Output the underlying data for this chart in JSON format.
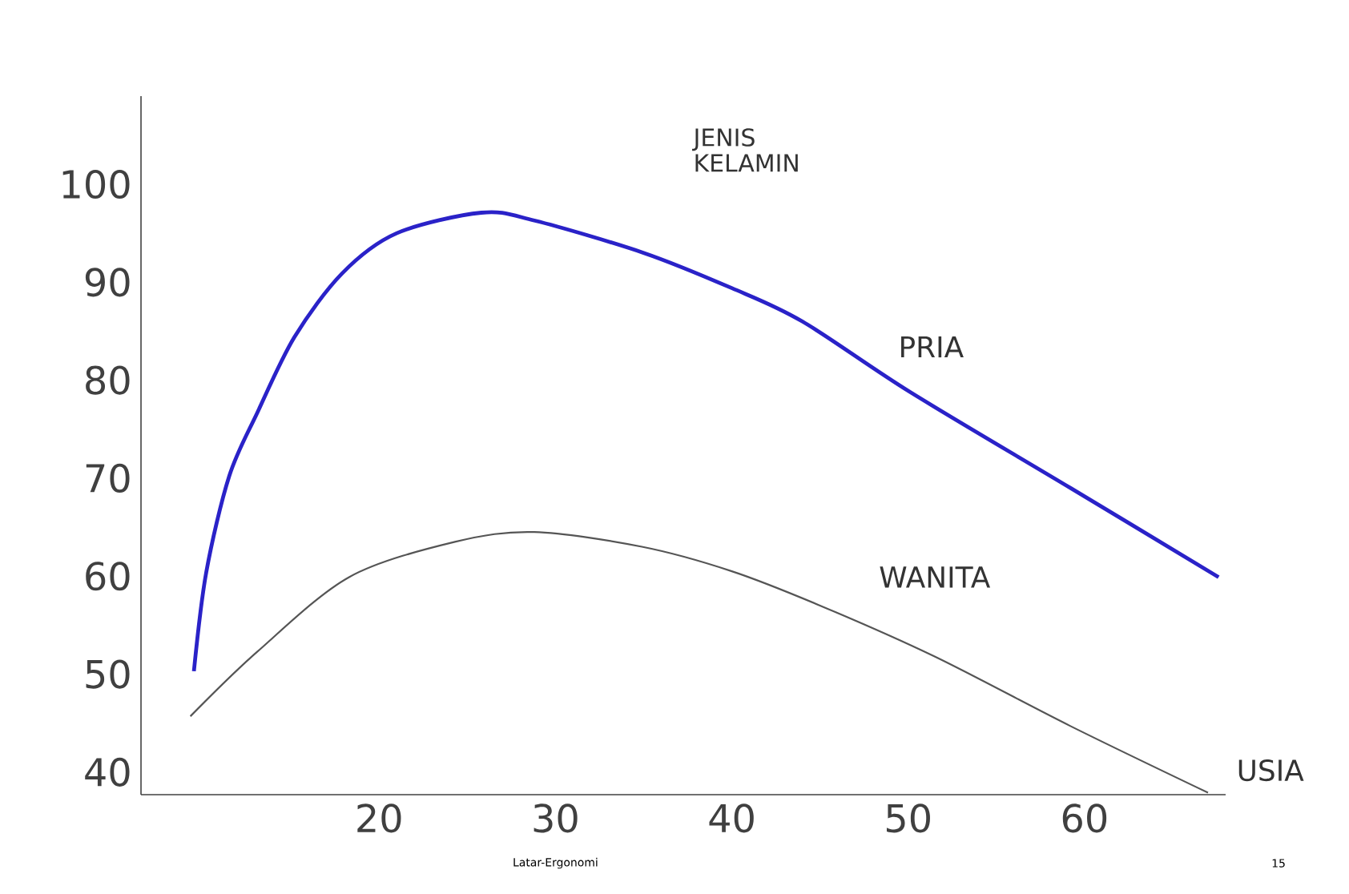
{
  "chart_data": {
    "type": "line",
    "legend_title": "JENIS KELAMIN",
    "xlabel": "USIA",
    "annotations": [
      "Latar-Ergonomi",
      "15"
    ],
    "xlim": [
      6.5,
      68
    ],
    "ylim": [
      37.7,
      109
    ],
    "xticks": [
      20,
      30,
      40,
      50,
      60
    ],
    "yticks": [
      40,
      50,
      60,
      70,
      80,
      90,
      100
    ],
    "series": [
      {
        "name": "PRIA",
        "color": "#2a22c8",
        "x": [
          9.5,
          10.2,
          11.5,
          13.1,
          15.2,
          17.9,
          21,
          25.8,
          28.8,
          35,
          40,
          44,
          50.1,
          59.2,
          67.6
        ],
        "values": [
          50.3,
          60.4,
          70.2,
          76.7,
          84.4,
          90.9,
          95,
          97.1,
          96.3,
          93.0,
          89.4,
          86.0,
          78.8,
          69.0,
          59.9
        ]
      },
      {
        "name": "WANITA",
        "color": "#555555",
        "x": [
          9.3,
          13.1,
          18.3,
          24.3,
          28.8,
          34.9,
          40,
          45,
          51.5,
          59.2,
          67
        ],
        "values": [
          45.7,
          52.3,
          59.9,
          63.5,
          64.5,
          63.0,
          60.5,
          57.0,
          51.8,
          44.7,
          37.9
        ]
      }
    ],
    "legend": false,
    "grid": false,
    "marker": "none",
    "line_style": "solid"
  }
}
